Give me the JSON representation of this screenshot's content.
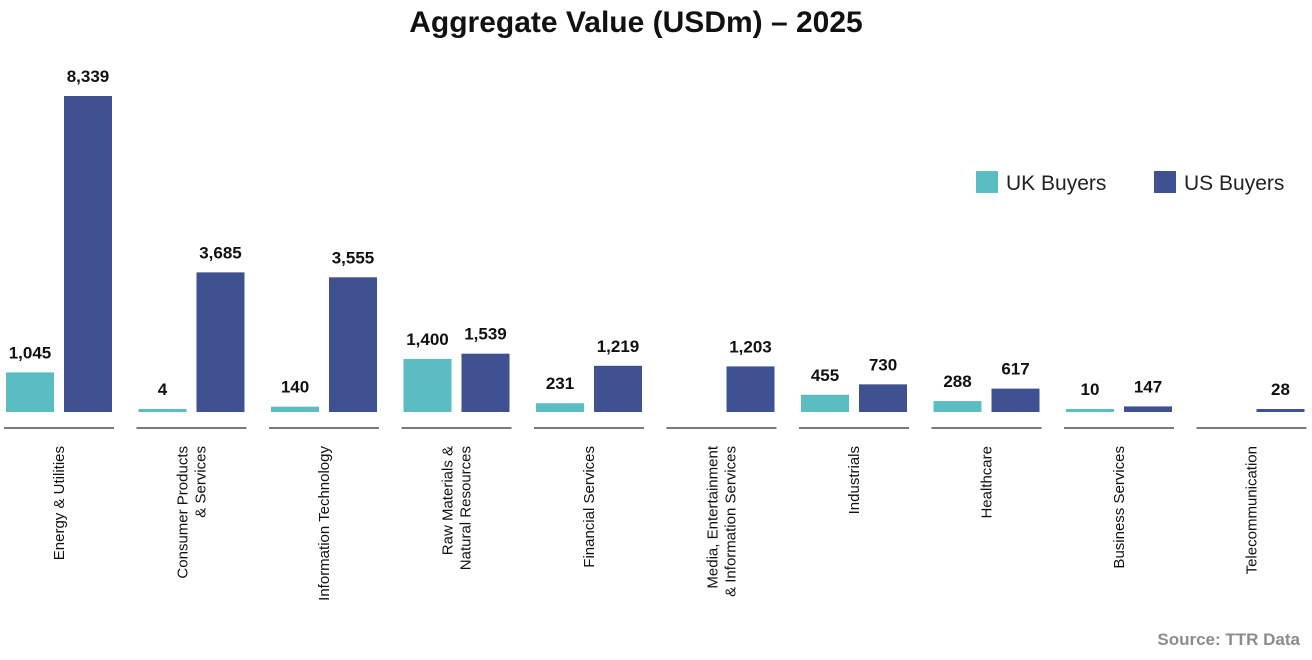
{
  "chart_data": {
    "type": "bar",
    "title": "Aggregate Value (USDm) – 2025",
    "xlabel": "",
    "ylabel": "",
    "ylim": [
      0,
      8500
    ],
    "grid": false,
    "legend_position": "right",
    "categories": [
      [
        "Energy & Utilities"
      ],
      [
        "Consumer Products",
        "& Services"
      ],
      [
        "Information Technology"
      ],
      [
        "Raw Materials &",
        "Natural Resources"
      ],
      [
        "Financial Services"
      ],
      [
        "Media, Entertainment",
        "& Information Services"
      ],
      [
        "Industrials"
      ],
      [
        "Healthcare"
      ],
      [
        "Business Services"
      ],
      [
        "Telecommunication"
      ]
    ],
    "series": [
      {
        "name": "UK Buyers",
        "color": "#5bbdc1",
        "values": [
          1045,
          4,
          140,
          1400,
          231,
          null,
          455,
          288,
          10,
          null
        ],
        "labels": [
          "1,045",
          "4",
          "140",
          "1,400",
          "231",
          "",
          "455",
          "288",
          "10",
          ""
        ]
      },
      {
        "name": "US Buyers",
        "color": "#3f5190",
        "values": [
          8339,
          3685,
          3555,
          1539,
          1219,
          1203,
          730,
          617,
          147,
          28
        ],
        "labels": [
          "8,339",
          "3,685",
          "3,555",
          "1,539",
          "1,219",
          "1,203",
          "730",
          "617",
          "147",
          "28"
        ]
      }
    ],
    "source": "Source: TTR Data"
  },
  "colors": {
    "axis": "#7a7a7a",
    "text": "#111111",
    "source": "#8c8c8c"
  }
}
